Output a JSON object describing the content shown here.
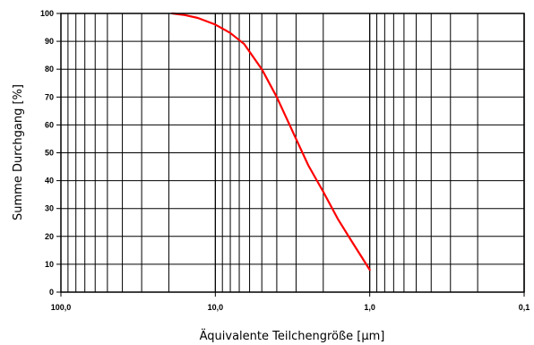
{
  "chart_data": {
    "type": "line",
    "title": "",
    "xlabel": "Äquivalente Teilchengröße [µm]",
    "ylabel": "Summe Durchgang [%]",
    "x_scale": "log",
    "x_reversed": true,
    "xlim": [
      100,
      0.1
    ],
    "ylim": [
      0,
      100
    ],
    "x_ticks": [
      {
        "value": 100,
        "label": "100,0"
      },
      {
        "value": 10,
        "label": "10,0"
      },
      {
        "value": 1,
        "label": "1,0"
      },
      {
        "value": 0.1,
        "label": "0,1"
      }
    ],
    "y_ticks": [
      {
        "value": 0,
        "label": "0"
      },
      {
        "value": 10,
        "label": "10"
      },
      {
        "value": 20,
        "label": "20"
      },
      {
        "value": 30,
        "label": "30"
      },
      {
        "value": 40,
        "label": "40"
      },
      {
        "value": 50,
        "label": "50"
      },
      {
        "value": 60,
        "label": "60"
      },
      {
        "value": 70,
        "label": "70"
      },
      {
        "value": 80,
        "label": "80"
      },
      {
        "value": 90,
        "label": "90"
      },
      {
        "value": 100,
        "label": "100"
      }
    ],
    "grid": true,
    "legend": "none",
    "line_color": "#ff0000",
    "series": [
      {
        "x": [
          19.0,
          16.0,
          13.0,
          10.0,
          8.0,
          6.5,
          5.0,
          4.0,
          3.0,
          2.5,
          2.0,
          1.6,
          1.3,
          1.0
        ],
        "y": [
          100,
          99.5,
          98.4,
          96,
          93,
          89,
          80,
          70,
          55,
          45.5,
          36,
          26,
          18,
          8
        ]
      }
    ]
  }
}
